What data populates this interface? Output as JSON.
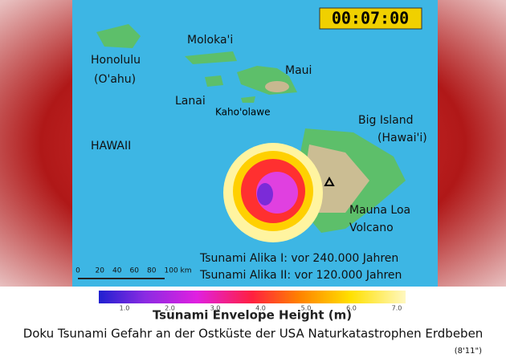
{
  "timer": "00:07:00",
  "labels": {
    "honolulu": "Honolulu",
    "oahu": "(O'ahu)",
    "molokai": "Moloka'i",
    "maui": "Maui",
    "lanai": "Lanai",
    "kahoolawe": "Kaho'olawe",
    "hawaii": "HAWAII",
    "big_island": "Big Island",
    "big_island_sub": "(Hawai'i)",
    "mauna_loa": "Mauna Loa",
    "volcano": "Volcano"
  },
  "scale_bar": [
    "0",
    "20",
    "40",
    "60",
    "80",
    "100 km"
  ],
  "events": [
    "Tsunami Alika I: vor 240.000 Jahren",
    "Tsunami Alika II: vor 120.000 Jahren"
  ],
  "legend": {
    "title": "Tsunami Envelope Height (m)",
    "ticks": [
      "1.0",
      "2.0",
      "3.0",
      "4.0",
      "5.0",
      "6.0",
      "7.0"
    ]
  },
  "caption": "Doku Tsunami Gefahr an der Ostküste der USA Naturkatastrophen Erdbeben",
  "duration": "(8'11\")"
}
